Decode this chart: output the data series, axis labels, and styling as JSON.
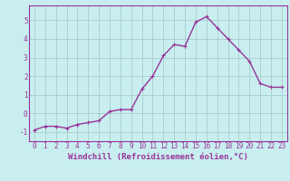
{
  "x": [
    0,
    1,
    2,
    3,
    4,
    5,
    6,
    7,
    8,
    9,
    10,
    11,
    12,
    13,
    14,
    15,
    16,
    17,
    18,
    19,
    20,
    21,
    22,
    23
  ],
  "y": [
    -0.9,
    -0.7,
    -0.7,
    -0.8,
    -0.6,
    -0.5,
    -0.4,
    0.1,
    0.2,
    0.2,
    1.3,
    2.0,
    3.1,
    3.7,
    3.6,
    4.9,
    5.2,
    4.6,
    4.0,
    3.4,
    2.8,
    1.6,
    1.4,
    1.4
  ],
  "line_color": "#993399",
  "marker": "+",
  "xlabel": "Windchill (Refroidissement éolien,°C)",
  "xlim": [
    -0.5,
    23.5
  ],
  "ylim": [
    -1.5,
    5.8
  ],
  "yticks": [
    -1,
    0,
    1,
    2,
    3,
    4,
    5
  ],
  "xticks": [
    0,
    1,
    2,
    3,
    4,
    5,
    6,
    7,
    8,
    9,
    10,
    11,
    12,
    13,
    14,
    15,
    16,
    17,
    18,
    19,
    20,
    21,
    22,
    23
  ],
  "bg_color": "#c8eef0",
  "grid_color": "#aacccc",
  "tick_label_color": "#993399",
  "axis_color": "#993399",
  "font_size": 5.5,
  "xlabel_fontsize": 6.5,
  "linewidth": 1.0,
  "markersize": 3.5
}
